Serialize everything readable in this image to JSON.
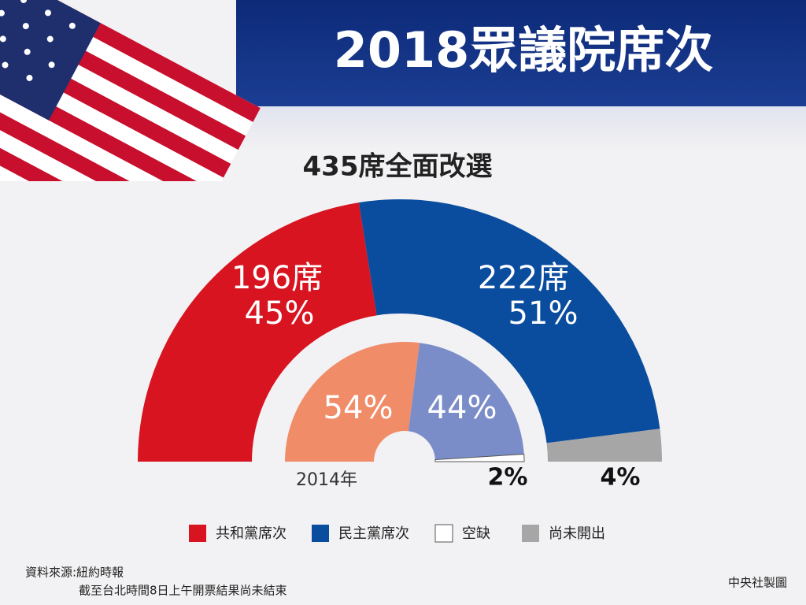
{
  "header": {
    "title": "2018眾議院席次"
  },
  "chart_data": [
    {
      "type": "half-donut",
      "subtitle": "435席全面改選",
      "segments": [
        {
          "name": "共和黨席次",
          "color": "#d7141f",
          "value": 45,
          "value_label": "45%",
          "seats": 196,
          "seats_label": "196席"
        },
        {
          "name": "民主黨席次",
          "color": "#0a4c9e",
          "value": 51,
          "value_label": "51%",
          "seats": 222,
          "seats_label": "222席"
        },
        {
          "name": "尚未開出",
          "color": "#a6a6a6",
          "value": 4,
          "value_label": "4%"
        }
      ]
    },
    {
      "type": "half-donut",
      "year_label": "2014年",
      "segments": [
        {
          "color": "#f08c68",
          "value": 54,
          "value_label": "54%"
        },
        {
          "color": "#7b8dc9",
          "value": 44,
          "value_label": "44%"
        },
        {
          "color": "#ffffff",
          "value": 2,
          "value_label": "2%"
        }
      ]
    }
  ],
  "legend": [
    {
      "name": "共和黨席次",
      "color": "#d7141f"
    },
    {
      "name": "民主黨席次",
      "color": "#0a4c9e"
    },
    {
      "name": "空缺",
      "color": "#ffffff"
    },
    {
      "name": "尚未開出",
      "color": "#a6a6a6"
    }
  ],
  "footer": {
    "source": "資料來源:紐約時報",
    "note": "截至台北時間8日上午開票結果尚未結束",
    "credit": "中央社製圖"
  }
}
